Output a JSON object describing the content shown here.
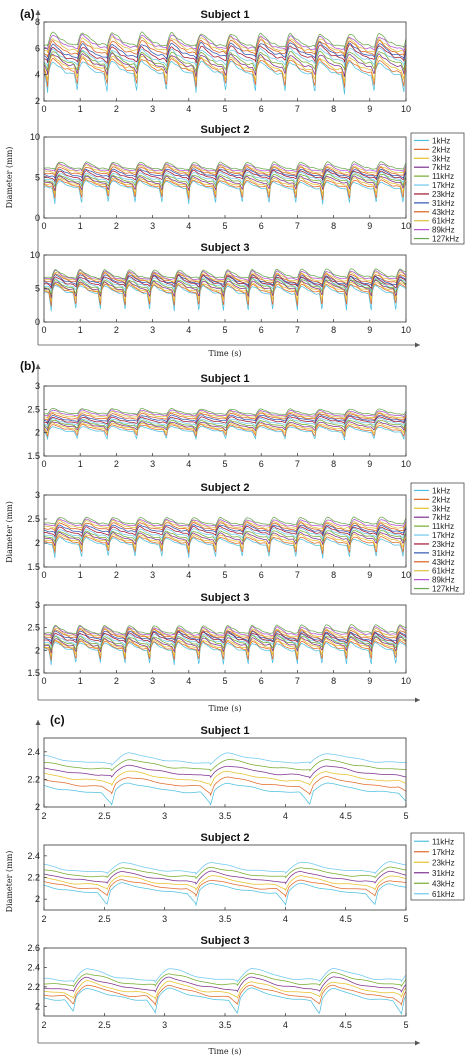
{
  "colors": [
    "#4fc0e0",
    "#e06a2a",
    "#e6c02a",
    "#7e2f8e",
    "#77ac30",
    "#6ec9ee",
    "#a2142f",
    "#2f55b0",
    "#d95f1e",
    "#dcc03c",
    "#b04fd0",
    "#6aa84f"
  ],
  "chart_data": [
    {
      "panel": "(a)",
      "type": "line",
      "ylabel": "Diameter (mm)",
      "xlabel": "Time (s)",
      "legend": [
        "1kHz",
        "2kHz",
        "3kHz",
        "7kHz",
        "11kHz",
        "17kHz",
        "23kHz",
        "31kHz",
        "43kHz",
        "61kHz",
        "89kHz",
        "127kHz"
      ],
      "legend_colors": [
        0,
        1,
        2,
        3,
        4,
        5,
        6,
        7,
        8,
        9,
        10,
        11
      ],
      "legend_position": "right",
      "subplots": [
        {
          "title": "Subject 1",
          "xlim": [
            0,
            10
          ],
          "ylim": [
            2,
            8
          ],
          "xticks": [
            0,
            1,
            2,
            3,
            4,
            5,
            6,
            7,
            8,
            9,
            10
          ],
          "yticks": [
            2,
            4,
            6,
            8
          ],
          "period": 0.82,
          "phase": 0.1,
          "base": 4.3,
          "step": 0.2,
          "amp": 1.1,
          "dip": 1.3,
          "grid": false
        },
        {
          "title": "Subject 2",
          "xlim": [
            0,
            10
          ],
          "ylim": [
            0,
            10
          ],
          "xticks": [
            0,
            1,
            2,
            3,
            4,
            5,
            6,
            7,
            8,
            9,
            10
          ],
          "yticks": [
            0,
            5,
            10
          ],
          "period": 0.74,
          "phase": 0.3,
          "base": 3.9,
          "step": 0.22,
          "amp": 1.0,
          "dip": 1.8,
          "grid": false
        },
        {
          "title": "Subject 3",
          "xlim": [
            0,
            10
          ],
          "ylim": [
            0,
            10
          ],
          "xticks": [
            0,
            1,
            2,
            3,
            4,
            5,
            6,
            7,
            8,
            9,
            10
          ],
          "yticks": [
            0,
            5,
            10
          ],
          "period": 0.68,
          "phase": 0.2,
          "base": 4.6,
          "step": 0.22,
          "amp": 1.4,
          "dip": 2.5,
          "grid": false
        }
      ]
    },
    {
      "panel": "(b)",
      "type": "line",
      "ylabel": "Diameter (mm)",
      "xlabel": "Time (s)",
      "legend": [
        "1kHz",
        "2kHz",
        "3kHz",
        "7kHz",
        "11kHz",
        "17kHz",
        "23kHz",
        "31kHz",
        "43kHz",
        "61kHz",
        "89kHz",
        "127kHz"
      ],
      "legend_colors": [
        0,
        1,
        2,
        3,
        4,
        5,
        6,
        7,
        8,
        9,
        10,
        11
      ],
      "legend_position": "right",
      "subplots": [
        {
          "title": "Subject 1",
          "xlim": [
            0,
            10
          ],
          "ylim": [
            1.5,
            3
          ],
          "xticks": [
            0,
            1,
            2,
            3,
            4,
            5,
            6,
            7,
            8,
            9,
            10
          ],
          "yticks": [
            1.5,
            2,
            2.5,
            3
          ],
          "period": 0.82,
          "phase": 0.1,
          "base": 2.05,
          "step": 0.035,
          "amp": 0.13,
          "dip": 0.15,
          "grid": false
        },
        {
          "title": "Subject 2",
          "xlim": [
            0,
            10
          ],
          "ylim": [
            1.5,
            3
          ],
          "xticks": [
            0,
            1,
            2,
            3,
            4,
            5,
            6,
            7,
            8,
            9,
            10
          ],
          "yticks": [
            1.5,
            2,
            2.5,
            3
          ],
          "period": 0.74,
          "phase": 0.3,
          "base": 2.0,
          "step": 0.04,
          "amp": 0.16,
          "dip": 0.25,
          "grid": false
        },
        {
          "title": "Subject 3",
          "xlim": [
            0,
            10
          ],
          "ylim": [
            1.5,
            3
          ],
          "xticks": [
            0,
            1,
            2,
            3,
            4,
            5,
            6,
            7,
            8,
            9,
            10
          ],
          "yticks": [
            1.5,
            2,
            2.5,
            3
          ],
          "period": 0.68,
          "phase": 0.2,
          "base": 2.05,
          "step": 0.035,
          "amp": 0.2,
          "dip": 0.3,
          "grid": false
        }
      ]
    },
    {
      "panel": "(c)",
      "type": "line",
      "ylabel": "Diameter (mm)",
      "xlabel": "Time (s)",
      "legend": [
        "11kHz",
        "17kHz",
        "23kHz",
        "31kHz",
        "43kHz",
        "61kHz"
      ],
      "legend_colors": [
        0,
        1,
        2,
        3,
        4,
        5
      ],
      "legend_position": "right",
      "subplots": [
        {
          "title": "Subject 1",
          "xlim": [
            2,
            5
          ],
          "ylim": [
            2,
            2.5
          ],
          "xticks": [
            2,
            2.5,
            3,
            3.5,
            4,
            4.5,
            5
          ],
          "yticks": [
            2,
            2.2,
            2.4
          ],
          "period": 0.82,
          "phase": 0.1,
          "base": 2.12,
          "step": 0.045,
          "amp": 0.08,
          "dip": 0.08,
          "grid": false
        },
        {
          "title": "Subject 2",
          "xlim": [
            2,
            5
          ],
          "ylim": [
            1.9,
            2.5
          ],
          "xticks": [
            2,
            2.5,
            3,
            3.5,
            4,
            4.5,
            5
          ],
          "yticks": [
            2,
            2.2,
            2.4
          ],
          "period": 0.74,
          "phase": 0.3,
          "base": 2.08,
          "step": 0.04,
          "amp": 0.1,
          "dip": 0.1,
          "grid": false
        },
        {
          "title": "Subject 3",
          "xlim": [
            2,
            5
          ],
          "ylim": [
            1.9,
            2.6
          ],
          "xticks": [
            2,
            2.5,
            3,
            3.5,
            4,
            4.5,
            5
          ],
          "yticks": [
            2,
            2.2,
            2.4,
            2.6
          ],
          "period": 0.68,
          "phase": 0.2,
          "base": 2.1,
          "step": 0.04,
          "amp": 0.14,
          "dip": 0.12,
          "grid": false
        }
      ]
    }
  ]
}
